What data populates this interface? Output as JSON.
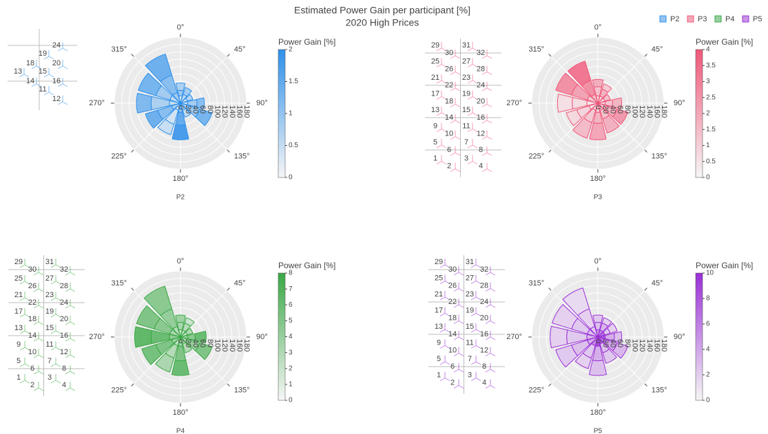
{
  "title": "Estimated Power Gain per participant [%]",
  "subtitle": "2020 High Prices",
  "chart_data": [
    {
      "type": "barpolar",
      "title": "P2",
      "color": "#2e90ea",
      "directions": [
        0,
        30,
        60,
        90,
        120,
        150,
        180,
        210,
        240,
        270,
        300,
        330
      ],
      "segments": [
        [
          20,
          15,
          20
        ],
        [
          25,
          20
        ],
        [
          20,
          15
        ],
        [
          20,
          25,
          20
        ],
        [
          25,
          30,
          35
        ],
        [
          20,
          20
        ],
        [
          25,
          35,
          40
        ],
        [
          20,
          40,
          30
        ],
        [
          25,
          40,
          35
        ],
        [
          30,
          50,
          40
        ],
        [
          30,
          40,
          50
        ],
        [
          30,
          50,
          60
        ]
      ],
      "gains": [
        [
          0.3,
          1.0,
          0.8
        ],
        [
          0.6,
          0.9
        ],
        [
          0.4,
          0.7
        ],
        [
          0.5,
          0.9,
          1.2
        ],
        [
          0.7,
          1.0,
          1.4
        ],
        [
          0.4,
          0.6
        ],
        [
          1.2,
          1.6,
          1.9
        ],
        [
          0.3,
          0.4,
          0.5
        ],
        [
          0.8,
          1.2,
          1.5
        ],
        [
          0.5,
          0.8,
          1.3
        ],
        [
          0.6,
          0.9,
          1.4
        ],
        [
          0.9,
          1.2,
          1.5
        ]
      ],
      "rlim": [
        0,
        180
      ],
      "rticks": [
        0,
        20,
        40,
        60,
        80,
        100,
        120,
        140,
        160,
        180
      ],
      "angular_ticks": [
        {
          "value": 0,
          "label": "0°"
        },
        {
          "value": 45,
          "label": "45°"
        },
        {
          "value": 90,
          "label": "90°"
        },
        {
          "value": 135,
          "label": "135°"
        },
        {
          "value": 180,
          "label": "180°"
        },
        {
          "value": 225,
          "label": "225°"
        },
        {
          "value": 270,
          "label": "270°"
        },
        {
          "value": 315,
          "label": "315°"
        }
      ],
      "colorbar": {
        "title": "Power Gain [%]",
        "clim": [
          0,
          2
        ],
        "ticks": [
          0,
          0.5,
          1,
          1.5,
          2
        ]
      },
      "turbines": [
        11,
        12,
        13,
        14,
        15,
        16,
        18,
        19,
        20,
        24
      ]
    },
    {
      "type": "barpolar",
      "title": "P3",
      "color": "#f0587a",
      "directions": [
        0,
        30,
        60,
        90,
        120,
        150,
        180,
        210,
        240,
        270,
        300,
        330
      ],
      "segments": [
        [
          20,
          25,
          20
        ],
        [
          20,
          20,
          15
        ],
        [
          20,
          15
        ],
        [
          20,
          20,
          25
        ],
        [
          25,
          30,
          30
        ],
        [
          20,
          25,
          40
        ],
        [
          25,
          30,
          45
        ],
        [
          20,
          35,
          45
        ],
        [
          25,
          35,
          30
        ],
        [
          30,
          40,
          40
        ],
        [
          30,
          45,
          45
        ],
        [
          25,
          40,
          55
        ]
      ],
      "gains": [
        [
          0.8,
          1.5,
          2.0
        ],
        [
          1.0,
          1.8,
          1.2
        ],
        [
          0.6,
          1.4
        ],
        [
          0.9,
          1.3,
          1.8
        ],
        [
          1.2,
          2.0,
          2.6
        ],
        [
          0.7,
          1.5,
          1.9
        ],
        [
          1.0,
          1.8,
          2.2
        ],
        [
          0.5,
          1.2,
          1.6
        ],
        [
          0.6,
          0.9,
          0.8
        ],
        [
          0.4,
          0.7,
          0.6
        ],
        [
          1.2,
          2.3,
          2.8
        ],
        [
          1.5,
          2.8,
          3.5
        ]
      ],
      "rlim": [
        0,
        180
      ],
      "rticks": [
        0,
        20,
        40,
        60,
        80,
        100,
        120,
        140,
        160,
        180
      ],
      "angular_ticks": [
        {
          "value": 0,
          "label": "0°"
        },
        {
          "value": 45,
          "label": "45°"
        },
        {
          "value": 90,
          "label": "90°"
        },
        {
          "value": 135,
          "label": "135°"
        },
        {
          "value": 180,
          "label": "180°"
        },
        {
          "value": 225,
          "label": "225°"
        },
        {
          "value": 270,
          "label": "270°"
        },
        {
          "value": 315,
          "label": "315°"
        }
      ],
      "colorbar": {
        "title": "Power Gain [%]",
        "clim": [
          0,
          4
        ],
        "ticks": [
          0,
          0.5,
          1,
          1.5,
          2,
          2.5,
          3,
          3.5,
          4
        ]
      },
      "turbines": [
        1,
        2,
        3,
        4,
        5,
        6,
        7,
        8,
        9,
        10,
        11,
        12,
        13,
        14,
        15,
        16,
        17,
        18,
        19,
        20,
        21,
        22,
        23,
        24,
        25,
        26,
        27,
        28,
        29,
        30,
        31,
        32
      ]
    },
    {
      "type": "barpolar",
      "title": "P4",
      "color": "#3aa845",
      "directions": [
        0,
        30,
        60,
        90,
        120,
        150,
        180,
        210,
        240,
        270,
        300,
        330
      ],
      "segments": [
        [
          20,
          20,
          20
        ],
        [
          20,
          20,
          15
        ],
        [
          20,
          15
        ],
        [
          20,
          20,
          30
        ],
        [
          25,
          30,
          35
        ],
        [
          20,
          25
        ],
        [
          25,
          40,
          40
        ],
        [
          25,
          35,
          40
        ],
        [
          25,
          45,
          40
        ],
        [
          30,
          50,
          45
        ],
        [
          30,
          45,
          50
        ],
        [
          30,
          50,
          65
        ]
      ],
      "gains": [
        [
          2.0,
          3.5,
          4.0
        ],
        [
          2.5,
          3.0,
          2.0
        ],
        [
          2.0,
          3.0
        ],
        [
          4.0,
          5.0,
          6.5
        ],
        [
          3.0,
          4.5,
          5.5
        ],
        [
          2.0,
          3.0
        ],
        [
          4.0,
          5.5,
          6.5
        ],
        [
          2.5,
          3.0,
          3.5
        ],
        [
          4.0,
          5.5,
          6.0
        ],
        [
          4.5,
          6.5,
          7.0
        ],
        [
          3.5,
          5.0,
          5.5
        ],
        [
          3.0,
          4.5,
          5.0
        ]
      ],
      "rlim": [
        0,
        180
      ],
      "rticks": [
        0,
        20,
        40,
        60,
        80,
        100,
        120,
        140,
        160,
        180
      ],
      "angular_ticks": [
        {
          "value": 0,
          "label": "0°"
        },
        {
          "value": 45,
          "label": "45°"
        },
        {
          "value": 90,
          "label": "90°"
        },
        {
          "value": 135,
          "label": "135°"
        },
        {
          "value": 180,
          "label": "180°"
        },
        {
          "value": 225,
          "label": "225°"
        },
        {
          "value": 270,
          "label": "270°"
        },
        {
          "value": 315,
          "label": "315°"
        }
      ],
      "colorbar": {
        "title": "Power Gain [%]",
        "clim": [
          0,
          8
        ],
        "ticks": [
          0,
          1,
          2,
          3,
          4,
          5,
          6,
          7,
          8
        ]
      },
      "turbines": [
        1,
        2,
        3,
        4,
        5,
        6,
        7,
        8,
        9,
        10,
        11,
        12,
        13,
        14,
        15,
        16,
        17,
        18,
        19,
        20,
        21,
        22,
        23,
        24,
        25,
        26,
        27,
        28,
        29,
        30,
        31,
        32
      ]
    },
    {
      "type": "barpolar",
      "title": "P5",
      "color": "#9a30d6",
      "directions": [
        0,
        30,
        60,
        90,
        120,
        150,
        180,
        210,
        240,
        270,
        300,
        330
      ],
      "segments": [
        [
          20,
          20,
          20
        ],
        [
          20,
          20,
          15
        ],
        [
          20,
          15,
          20
        ],
        [
          20,
          25,
          20
        ],
        [
          25,
          30,
          30
        ],
        [
          20,
          25,
          30
        ],
        [
          25,
          40,
          40
        ],
        [
          25,
          35,
          30
        ],
        [
          30,
          45,
          45
        ],
        [
          30,
          55,
          45
        ],
        [
          30,
          45,
          55
        ],
        [
          30,
          50,
          60
        ]
      ],
      "gains": [
        [
          5.0,
          3.0,
          2.5
        ],
        [
          6.0,
          3.5,
          2.0
        ],
        [
          7.0,
          2.5,
          2.0
        ],
        [
          9.0,
          4.0,
          3.0
        ],
        [
          6.5,
          4.5,
          3.5
        ],
        [
          8.0,
          3.0,
          2.5
        ],
        [
          9.5,
          4.0,
          3.0
        ],
        [
          6.0,
          2.5,
          2.0
        ],
        [
          4.0,
          3.0,
          2.5
        ],
        [
          3.5,
          2.5,
          2.0
        ],
        [
          3.0,
          2.5,
          2.0
        ],
        [
          2.5,
          2.0,
          1.5
        ]
      ],
      "rlim": [
        0,
        180
      ],
      "rticks": [
        0,
        20,
        40,
        60,
        80,
        100,
        120,
        140,
        160,
        180
      ],
      "angular_ticks": [
        {
          "value": 0,
          "label": "0°"
        },
        {
          "value": 45,
          "label": "45°"
        },
        {
          "value": 90,
          "label": "90°"
        },
        {
          "value": 135,
          "label": "135°"
        },
        {
          "value": 180,
          "label": "180°"
        },
        {
          "value": 225,
          "label": "225°"
        },
        {
          "value": 270,
          "label": "270°"
        },
        {
          "value": 315,
          "label": "315°"
        }
      ],
      "colorbar": {
        "title": "Power Gain [%]",
        "clim": [
          0,
          10
        ],
        "ticks": [
          0,
          2,
          4,
          6,
          8,
          10
        ]
      },
      "turbines": [
        1,
        2,
        3,
        4,
        5,
        6,
        7,
        8,
        9,
        10,
        11,
        12,
        13,
        14,
        15,
        16,
        17,
        18,
        19,
        20,
        21,
        22,
        23,
        24,
        25,
        26,
        27,
        28,
        29,
        30,
        31,
        32
      ]
    }
  ]
}
